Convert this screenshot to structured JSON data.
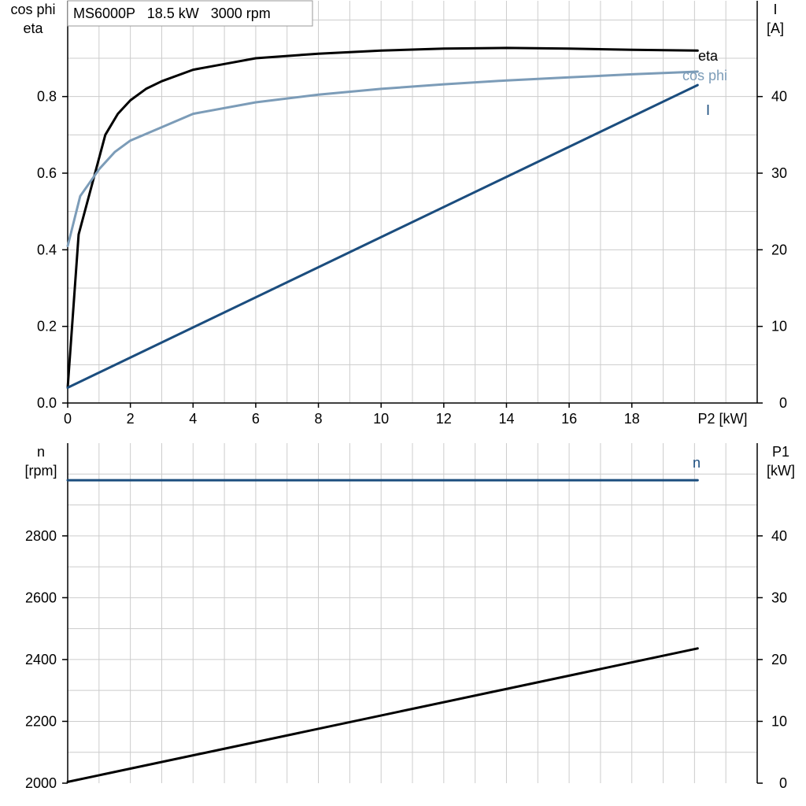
{
  "legend_text": "MS6000P   18.5 kW   3000 rpm",
  "colors": {
    "eta": "#000000",
    "cosphi": "#7c9cb8",
    "current": "#1b4d7e",
    "speed": "#1b4d7e",
    "p1": "#000000"
  },
  "chart_data": [
    {
      "type": "line",
      "xlabel": "P2 [kW]",
      "x_ticks": [
        "0",
        "2",
        "4",
        "6",
        "8",
        "10",
        "12",
        "14",
        "16",
        "18"
      ],
      "xlim": [
        0,
        22
      ],
      "ylabel_left": [
        "cos phi",
        "eta"
      ],
      "ylim_left": [
        0,
        1.05
      ],
      "y_ticks_left": [
        "0.0",
        "0.2",
        "0.4",
        "0.6",
        "0.8"
      ],
      "ylabel_right": [
        "I",
        "[A]"
      ],
      "ylim_right": [
        0,
        52.5
      ],
      "y_ticks_right": [
        "0",
        "10",
        "20",
        "30",
        "40"
      ],
      "grid": true,
      "series": [
        {
          "name": "eta",
          "axis": "left",
          "points": [
            [
              0,
              0.04
            ],
            [
              0.35,
              0.44
            ],
            [
              1.2,
              0.7
            ],
            [
              1.6,
              0.755
            ],
            [
              2,
              0.79
            ],
            [
              2.5,
              0.82
            ],
            [
              3,
              0.84
            ],
            [
              4,
              0.87
            ],
            [
              5,
              0.885
            ],
            [
              6,
              0.9
            ],
            [
              8,
              0.912
            ],
            [
              10,
              0.92
            ],
            [
              12,
              0.925
            ],
            [
              14,
              0.927
            ],
            [
              16,
              0.925
            ],
            [
              18,
              0.922
            ],
            [
              20.1,
              0.92
            ]
          ]
        },
        {
          "name": "cos phi",
          "axis": "left",
          "points": [
            [
              0,
              0.41
            ],
            [
              0.4,
              0.54
            ],
            [
              1,
              0.61
            ],
            [
              1.5,
              0.655
            ],
            [
              2,
              0.685
            ],
            [
              3,
              0.72
            ],
            [
              4,
              0.755
            ],
            [
              6,
              0.785
            ],
            [
              8,
              0.805
            ],
            [
              10,
              0.82
            ],
            [
              12,
              0.832
            ],
            [
              14,
              0.842
            ],
            [
              16,
              0.85
            ],
            [
              18,
              0.858
            ],
            [
              20.1,
              0.865
            ]
          ]
        },
        {
          "name": "I",
          "axis": "right",
          "points": [
            [
              0,
              2
            ],
            [
              20.1,
              41.5
            ]
          ]
        }
      ]
    },
    {
      "type": "line",
      "xlim": [
        0,
        22
      ],
      "ylabel_left": [
        "n",
        "[rpm]"
      ],
      "ylim_left": [
        2000,
        3100
      ],
      "y_ticks_left": [
        "2000",
        "2200",
        "2400",
        "2600",
        "2800"
      ],
      "ylabel_right": [
        "P1",
        "[kW]"
      ],
      "ylim_right": [
        0,
        55
      ],
      "y_ticks_right": [
        "0",
        "10",
        "20",
        "30",
        "40"
      ],
      "grid": true,
      "series": [
        {
          "name": "n",
          "axis": "left",
          "points": [
            [
              0,
              2980
            ],
            [
              20.1,
              2980
            ]
          ]
        },
        {
          "name": "",
          "axis": "right",
          "points": [
            [
              0,
              0.2
            ],
            [
              20.1,
              21.8
            ]
          ]
        }
      ]
    }
  ]
}
